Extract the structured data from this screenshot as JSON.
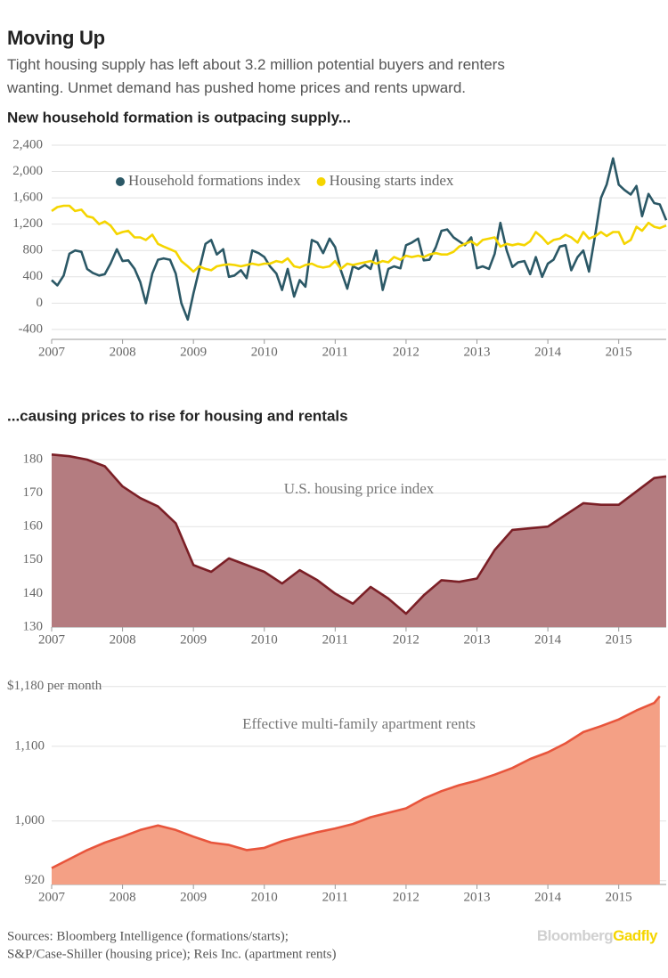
{
  "header": {
    "title": "Moving Up",
    "subtitle": "Tight housing supply has left about 3.2 million potential buyers and renters wanting. Unmet demand has pushed home prices and rents upward."
  },
  "chart_data": [
    {
      "type": "line",
      "title": "New household formation is outpacing supply...",
      "x": [
        2007,
        2007.08,
        2007.17,
        2007.25,
        2007.33,
        2007.42,
        2007.5,
        2007.58,
        2007.67,
        2007.75,
        2007.83,
        2007.92,
        2008,
        2008.08,
        2008.17,
        2008.25,
        2008.33,
        2008.42,
        2008.5,
        2008.58,
        2008.67,
        2008.75,
        2008.83,
        2008.92,
        2009,
        2009.08,
        2009.17,
        2009.25,
        2009.33,
        2009.42,
        2009.5,
        2009.58,
        2009.67,
        2009.75,
        2009.83,
        2009.92,
        2010,
        2010.08,
        2010.17,
        2010.25,
        2010.33,
        2010.42,
        2010.5,
        2010.58,
        2010.67,
        2010.75,
        2010.83,
        2010.92,
        2011,
        2011.08,
        2011.17,
        2011.25,
        2011.33,
        2011.42,
        2011.5,
        2011.58,
        2011.67,
        2011.75,
        2011.83,
        2011.92,
        2012,
        2012.08,
        2012.17,
        2012.25,
        2012.33,
        2012.42,
        2012.5,
        2012.58,
        2012.67,
        2012.75,
        2012.83,
        2012.92,
        2013,
        2013.08,
        2013.17,
        2013.25,
        2013.33,
        2013.42,
        2013.5,
        2013.58,
        2013.67,
        2013.75,
        2013.83,
        2013.92,
        2014,
        2014.08,
        2014.17,
        2014.25,
        2014.33,
        2014.42,
        2014.5,
        2014.58,
        2014.67,
        2014.75,
        2014.83,
        2014.92,
        2015,
        2015.08,
        2015.17,
        2015.25,
        2015.33,
        2015.42,
        2015.5,
        2015.58,
        2015.67
      ],
      "series": [
        {
          "name": "Household formations index",
          "color": "#2b5866",
          "values": [
            350,
            270,
            420,
            750,
            800,
            780,
            520,
            460,
            420,
            440,
            600,
            820,
            640,
            650,
            520,
            320,
            0,
            450,
            660,
            680,
            660,
            450,
            0,
            -250,
            150,
            500,
            900,
            960,
            740,
            820,
            400,
            420,
            500,
            380,
            800,
            760,
            700,
            560,
            450,
            200,
            520,
            100,
            350,
            250,
            960,
            920,
            760,
            980,
            850,
            500,
            220,
            560,
            520,
            580,
            520,
            800,
            200,
            520,
            560,
            530,
            880,
            920,
            980,
            650,
            660,
            850,
            1100,
            1120,
            1000,
            940,
            880,
            1000,
            530,
            560,
            520,
            750,
            1220,
            800,
            550,
            620,
            640,
            440,
            700,
            400,
            600,
            660,
            860,
            880,
            500,
            700,
            800,
            480,
            1050,
            1600,
            1800,
            2200,
            1800,
            1720,
            1650,
            1780,
            1320,
            1660,
            1520,
            1500,
            1260
          ]
        },
        {
          "name": "Housing starts index",
          "color": "#f5d500",
          "values": [
            1400,
            1460,
            1480,
            1480,
            1400,
            1420,
            1320,
            1300,
            1200,
            1240,
            1180,
            1050,
            1080,
            1100,
            1000,
            1000,
            960,
            1040,
            900,
            860,
            820,
            780,
            640,
            560,
            480,
            560,
            520,
            500,
            560,
            580,
            590,
            580,
            560,
            580,
            600,
            580,
            600,
            600,
            640,
            620,
            680,
            560,
            540,
            580,
            600,
            560,
            540,
            560,
            640,
            520,
            600,
            580,
            600,
            620,
            640,
            600,
            640,
            620,
            700,
            660,
            720,
            700,
            720,
            700,
            740,
            760,
            740,
            740,
            780,
            860,
            900,
            940,
            880,
            960,
            980,
            1000,
            860,
            900,
            880,
            900,
            880,
            940,
            1080,
            1000,
            900,
            960,
            980,
            1040,
            1000,
            920,
            1080,
            980,
            1020,
            1080,
            1020,
            1080,
            1080,
            900,
            960,
            1160,
            1100,
            1220,
            1160,
            1140,
            1180
          ]
        }
      ],
      "xlim": [
        2007,
        2015.67
      ],
      "xticks": [
        2007,
        2008,
        2009,
        2010,
        2011,
        2012,
        2013,
        2014,
        2015
      ],
      "ylim": [
        -550,
        2450
      ],
      "yticks": [
        {
          "value": 2400,
          "label": "2,400"
        },
        {
          "value": 2000,
          "label": "2,000"
        },
        {
          "value": 1600,
          "label": "1,600"
        },
        {
          "value": 1200,
          "label": "1,200"
        },
        800,
        400,
        0,
        -400
      ],
      "grid": true,
      "legend": "top"
    },
    {
      "type": "area",
      "title": "...causing prices to rise for housing and rentals",
      "x": [
        2007,
        2007.25,
        2007.5,
        2007.75,
        2008,
        2008.25,
        2008.5,
        2008.75,
        2009,
        2009.25,
        2009.5,
        2009.75,
        2010,
        2010.25,
        2010.5,
        2010.75,
        2011,
        2011.25,
        2011.5,
        2011.75,
        2012,
        2012.25,
        2012.5,
        2012.75,
        2013,
        2013.25,
        2013.5,
        2013.75,
        2014,
        2014.25,
        2014.5,
        2014.75,
        2015,
        2015.25,
        2015.5,
        2015.67
      ],
      "series": [
        {
          "name": "U.S. housing price index",
          "color": "#7b1f26",
          "fill_color": "#b47c80",
          "values": [
            181.5,
            181,
            180,
            178,
            172,
            168.5,
            166,
            161,
            148.5,
            146.5,
            150.5,
            148.5,
            146.5,
            143,
            147,
            144,
            140,
            137,
            142,
            138.5,
            134,
            139.5,
            144,
            143.5,
            144.5,
            153,
            159,
            159.5,
            160,
            163.5,
            167,
            166.5,
            166.5,
            170.5,
            174.5,
            175
          ]
        }
      ],
      "xlim": [
        2007,
        2015.67
      ],
      "xticks": [
        2007,
        2008,
        2009,
        2010,
        2011,
        2012,
        2013,
        2014,
        2015
      ],
      "ylim": [
        130,
        183
      ],
      "yticks": [
        180,
        170,
        160,
        150,
        140,
        130
      ],
      "grid": true
    },
    {
      "type": "area",
      "x": [
        2007,
        2007.25,
        2007.5,
        2007.75,
        2008,
        2008.25,
        2008.5,
        2008.75,
        2009,
        2009.25,
        2009.5,
        2009.75,
        2010,
        2010.25,
        2010.5,
        2010.75,
        2011,
        2011.25,
        2011.5,
        2011.75,
        2012,
        2012.25,
        2012.5,
        2012.75,
        2013,
        2013.25,
        2013.5,
        2013.75,
        2014,
        2014.25,
        2014.5,
        2014.75,
        2015,
        2015.25,
        2015.5,
        2015.58
      ],
      "series": [
        {
          "name": "Effective multi-family apartment rents",
          "color": "#e8553c",
          "fill_color": "#f4a085",
          "values": [
            937,
            949,
            961,
            971,
            979,
            988,
            994,
            988,
            979,
            971,
            968,
            961,
            964,
            973,
            979,
            985,
            990,
            996,
            1005,
            1011,
            1017,
            1030,
            1040,
            1048,
            1054,
            1062,
            1071,
            1083,
            1092,
            1104,
            1119,
            1127,
            1136,
            1148,
            1158,
            1167
          ]
        }
      ],
      "xlim": [
        2007,
        2015.67
      ],
      "xticks": [
        2007,
        2008,
        2009,
        2010,
        2011,
        2012,
        2013,
        2014,
        2015
      ],
      "ylim": [
        915,
        1185
      ],
      "yticks": [
        920,
        {
          "value": 1000,
          "label": "1,000"
        },
        {
          "value": 1100,
          "label": "1,100"
        },
        {
          "value": 1180,
          "label": "$1,180 per month"
        }
      ],
      "grid": true
    }
  ],
  "footer": {
    "sources": [
      "Sources: Bloomberg Intelligence (formations/starts);",
      "S&P/Case-Shiller (housing price); Reis Inc. (apartment rents)"
    ],
    "logo": [
      "Bloomberg",
      "Gadfly"
    ]
  }
}
